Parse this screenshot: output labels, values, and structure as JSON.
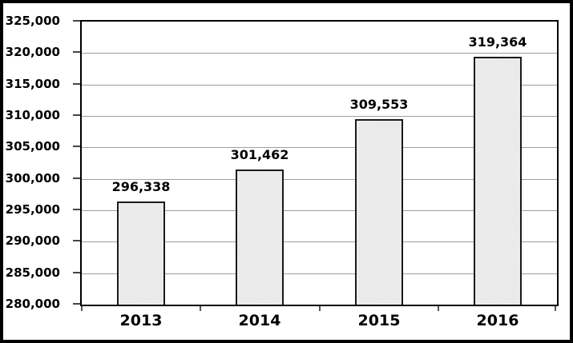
{
  "chart_data": {
    "type": "bar",
    "title": "",
    "xlabel": "",
    "ylabel": "",
    "categories": [
      "2013",
      "2014",
      "2015",
      "2016"
    ],
    "values": [
      296338,
      301462,
      309553,
      319364
    ],
    "value_labels": [
      "296,338",
      "301,462",
      "309,553",
      "319,364"
    ],
    "ylim": [
      280000,
      325000
    ],
    "ytick_step": 5000,
    "ytick_labels": [
      "325,000",
      "320,000",
      "315,000",
      "310,000",
      "305,000",
      "300,000",
      "295,000",
      "290,000",
      "285,000",
      "280,000"
    ],
    "grid": true,
    "legend": false,
    "colors": {
      "bar_fill": "#e9e9e9",
      "bar_border": "#1a1a1a",
      "gridline": "#9e9e9e",
      "plot_border": "#000000",
      "outer_frame": "#000000",
      "text": "#000000",
      "background": "#ffffff"
    }
  }
}
